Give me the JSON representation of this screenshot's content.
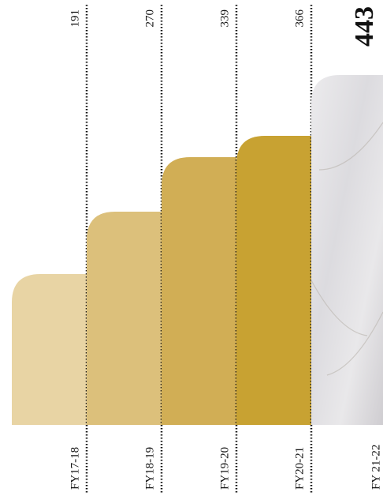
{
  "chart_data": {
    "type": "bar",
    "categories": [
      "FY17-18",
      "FY18-19",
      "FY19-20",
      "FY20-21",
      "FY 21-22"
    ],
    "values": [
      191,
      270,
      339,
      366,
      443
    ],
    "colors": [
      "#e8d4a4",
      "#dcc07b",
      "#d1ae55",
      "#c8a232",
      "#dddcdf"
    ],
    "highlight": 4
  }
}
